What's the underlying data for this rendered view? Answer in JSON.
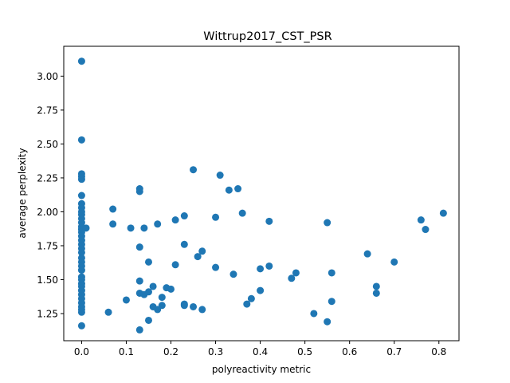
{
  "chart_data": {
    "type": "scatter",
    "title": "Wittrup2017_CST_PSR",
    "xlabel": "polyreactivity metric",
    "ylabel": "average perplexity",
    "xlim": [
      -0.04,
      0.845
    ],
    "ylim": [
      1.05,
      3.22
    ],
    "xticks": [
      "0.0",
      "0.1",
      "0.2",
      "0.3",
      "0.4",
      "0.5",
      "0.6",
      "0.7",
      "0.8"
    ],
    "yticks": [
      "1.25",
      "1.50",
      "1.75",
      "2.00",
      "2.25",
      "2.50",
      "2.75",
      "3.00"
    ],
    "grid": false,
    "color": "#1f77b4",
    "series": [
      {
        "points": [
          [
            0.0,
            3.11
          ],
          [
            0.0,
            2.53
          ],
          [
            0.0,
            2.28
          ],
          [
            0.0,
            2.26
          ],
          [
            0.0,
            2.24
          ],
          [
            0.0,
            2.12
          ],
          [
            0.0,
            2.06
          ],
          [
            0.0,
            2.03
          ],
          [
            0.0,
            2.0
          ],
          [
            0.0,
            1.98
          ],
          [
            0.0,
            1.95
          ],
          [
            0.0,
            1.92
          ],
          [
            0.0,
            1.89
          ],
          [
            0.0,
            1.87
          ],
          [
            0.0,
            1.85
          ],
          [
            0.0,
            1.82
          ],
          [
            0.0,
            1.79
          ],
          [
            0.0,
            1.76
          ],
          [
            0.0,
            1.73
          ],
          [
            0.0,
            1.7
          ],
          [
            0.0,
            1.66
          ],
          [
            0.0,
            1.63
          ],
          [
            0.0,
            1.6
          ],
          [
            0.0,
            1.57
          ],
          [
            0.0,
            1.52
          ],
          [
            0.0,
            1.5
          ],
          [
            0.0,
            1.47
          ],
          [
            0.0,
            1.45
          ],
          [
            0.0,
            1.42
          ],
          [
            0.0,
            1.39
          ],
          [
            0.0,
            1.36
          ],
          [
            0.0,
            1.33
          ],
          [
            0.0,
            1.3
          ],
          [
            0.0,
            1.28
          ],
          [
            0.0,
            1.26
          ],
          [
            0.0,
            1.16
          ],
          [
            0.01,
            1.88
          ],
          [
            0.06,
            1.26
          ],
          [
            0.07,
            2.02
          ],
          [
            0.07,
            1.91
          ],
          [
            0.1,
            1.35
          ],
          [
            0.11,
            1.88
          ],
          [
            0.13,
            2.17
          ],
          [
            0.13,
            2.15
          ],
          [
            0.13,
            1.74
          ],
          [
            0.13,
            1.49
          ],
          [
            0.13,
            1.4
          ],
          [
            0.13,
            1.13
          ],
          [
            0.14,
            1.88
          ],
          [
            0.14,
            1.39
          ],
          [
            0.15,
            1.63
          ],
          [
            0.15,
            1.41
          ],
          [
            0.15,
            1.2
          ],
          [
            0.16,
            1.45
          ],
          [
            0.16,
            1.3
          ],
          [
            0.17,
            1.91
          ],
          [
            0.17,
            1.28
          ],
          [
            0.18,
            1.37
          ],
          [
            0.18,
            1.31
          ],
          [
            0.19,
            1.44
          ],
          [
            0.2,
            1.43
          ],
          [
            0.21,
            1.94
          ],
          [
            0.21,
            1.61
          ],
          [
            0.23,
            1.97
          ],
          [
            0.23,
            1.76
          ],
          [
            0.23,
            1.32
          ],
          [
            0.23,
            1.31
          ],
          [
            0.25,
            2.31
          ],
          [
            0.25,
            1.3
          ],
          [
            0.26,
            1.67
          ],
          [
            0.27,
            1.71
          ],
          [
            0.27,
            1.28
          ],
          [
            0.3,
            1.96
          ],
          [
            0.3,
            1.59
          ],
          [
            0.31,
            2.27
          ],
          [
            0.33,
            2.16
          ],
          [
            0.34,
            1.54
          ],
          [
            0.35,
            2.17
          ],
          [
            0.36,
            1.99
          ],
          [
            0.37,
            1.32
          ],
          [
            0.38,
            1.36
          ],
          [
            0.4,
            1.58
          ],
          [
            0.4,
            1.42
          ],
          [
            0.42,
            1.93
          ],
          [
            0.42,
            1.6
          ],
          [
            0.47,
            1.51
          ],
          [
            0.48,
            1.55
          ],
          [
            0.52,
            1.25
          ],
          [
            0.55,
            1.92
          ],
          [
            0.55,
            1.19
          ],
          [
            0.56,
            1.55
          ],
          [
            0.56,
            1.34
          ],
          [
            0.64,
            1.69
          ],
          [
            0.66,
            1.45
          ],
          [
            0.66,
            1.4
          ],
          [
            0.7,
            1.63
          ],
          [
            0.76,
            1.94
          ],
          [
            0.77,
            1.87
          ],
          [
            0.81,
            1.99
          ]
        ]
      }
    ]
  }
}
